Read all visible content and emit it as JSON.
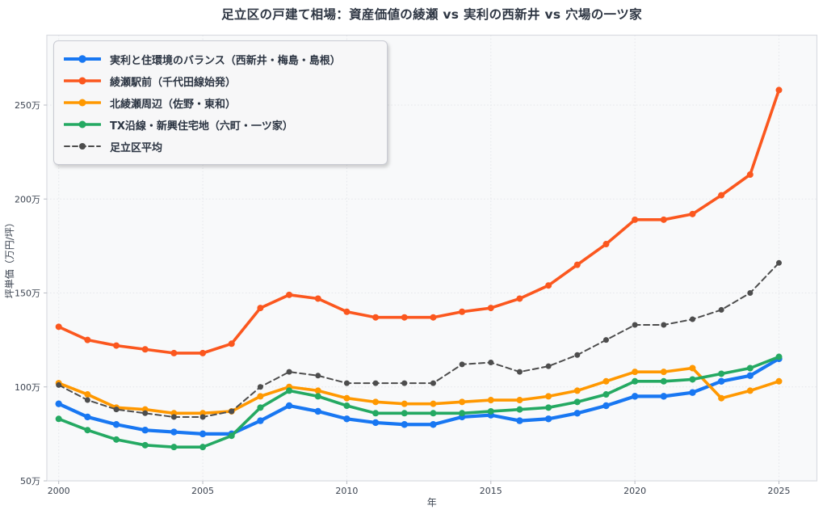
{
  "title": "足立区の戸建て相場：資産価値の綾瀬 vs 実利の西新井 vs 穴場の一ツ家",
  "chart_data": {
    "type": "line",
    "x": [
      2000,
      2001,
      2002,
      2003,
      2004,
      2005,
      2006,
      2007,
      2008,
      2009,
      2010,
      2011,
      2012,
      2013,
      2014,
      2015,
      2016,
      2017,
      2018,
      2019,
      2020,
      2021,
      2022,
      2023,
      2024,
      2025
    ],
    "series": [
      {
        "id": "nishiarai",
        "name": "実利と住環境のバランス（西新井・梅島・島根）",
        "color": "#1877F2",
        "dash": "solid",
        "width": 4.2,
        "marker": 4.2,
        "values": [
          91,
          84,
          80,
          77,
          76,
          75,
          75,
          82,
          90,
          87,
          83,
          81,
          80,
          80,
          84,
          85,
          82,
          83,
          86,
          90,
          95,
          95,
          97,
          103,
          106,
          115
        ]
      },
      {
        "id": "ayase",
        "name": "綾瀬駅前（千代田線始発）",
        "color": "#FB571E",
        "dash": "solid",
        "width": 3.6,
        "marker": 4,
        "values": [
          132,
          125,
          122,
          120,
          118,
          118,
          123,
          142,
          149,
          147,
          140,
          137,
          137,
          137,
          140,
          142,
          147,
          154,
          165,
          176,
          189,
          189,
          192,
          202,
          213,
          258
        ]
      },
      {
        "id": "kitaayase",
        "name": "北綾瀬周辺（佐野・東和）",
        "color": "#FF9800",
        "dash": "solid",
        "width": 3.6,
        "marker": 4,
        "values": [
          102,
          96,
          89,
          88,
          86,
          86,
          87,
          95,
          100,
          98,
          94,
          92,
          91,
          91,
          92,
          93,
          93,
          95,
          98,
          103,
          108,
          108,
          110,
          94,
          98,
          103
        ]
      },
      {
        "id": "tx-ensen",
        "name": "TX沿線・新興住宅地（六町・一ツ家）",
        "color": "#24A962",
        "dash": "solid",
        "width": 3.6,
        "marker": 4,
        "values": [
          83,
          77,
          72,
          69,
          68,
          68,
          74,
          89,
          98,
          95,
          90,
          86,
          86,
          86,
          86,
          87,
          88,
          89,
          92,
          96,
          103,
          103,
          104,
          107,
          110,
          116
        ]
      },
      {
        "id": "adachi-avg",
        "name": "足立区平均",
        "color": "#4D4D4D",
        "dash": "dashed",
        "width": 2,
        "marker": 3.5,
        "values": [
          101,
          93,
          88,
          86,
          84,
          84,
          87,
          100,
          108,
          106,
          102,
          102,
          102,
          102,
          112,
          113,
          108,
          111,
          117,
          125,
          133,
          133,
          136,
          141,
          150,
          166
        ]
      }
    ],
    "xlabel": "年",
    "ylabel": "坪単価（万円/坪）",
    "xticks": [
      2000,
      2005,
      2010,
      2015,
      2020,
      2025
    ],
    "yticks": [
      {
        "value": 50,
        "label": "50万"
      },
      {
        "value": 100,
        "label": "100万"
      },
      {
        "value": 150,
        "label": "150万"
      },
      {
        "value": 200,
        "label": "200万"
      },
      {
        "value": 250,
        "label": "250万"
      }
    ],
    "ylim": [
      50,
      287
    ],
    "xlim": [
      1999.6,
      2026.3
    ],
    "grid": true,
    "legend_position": "top-left"
  }
}
